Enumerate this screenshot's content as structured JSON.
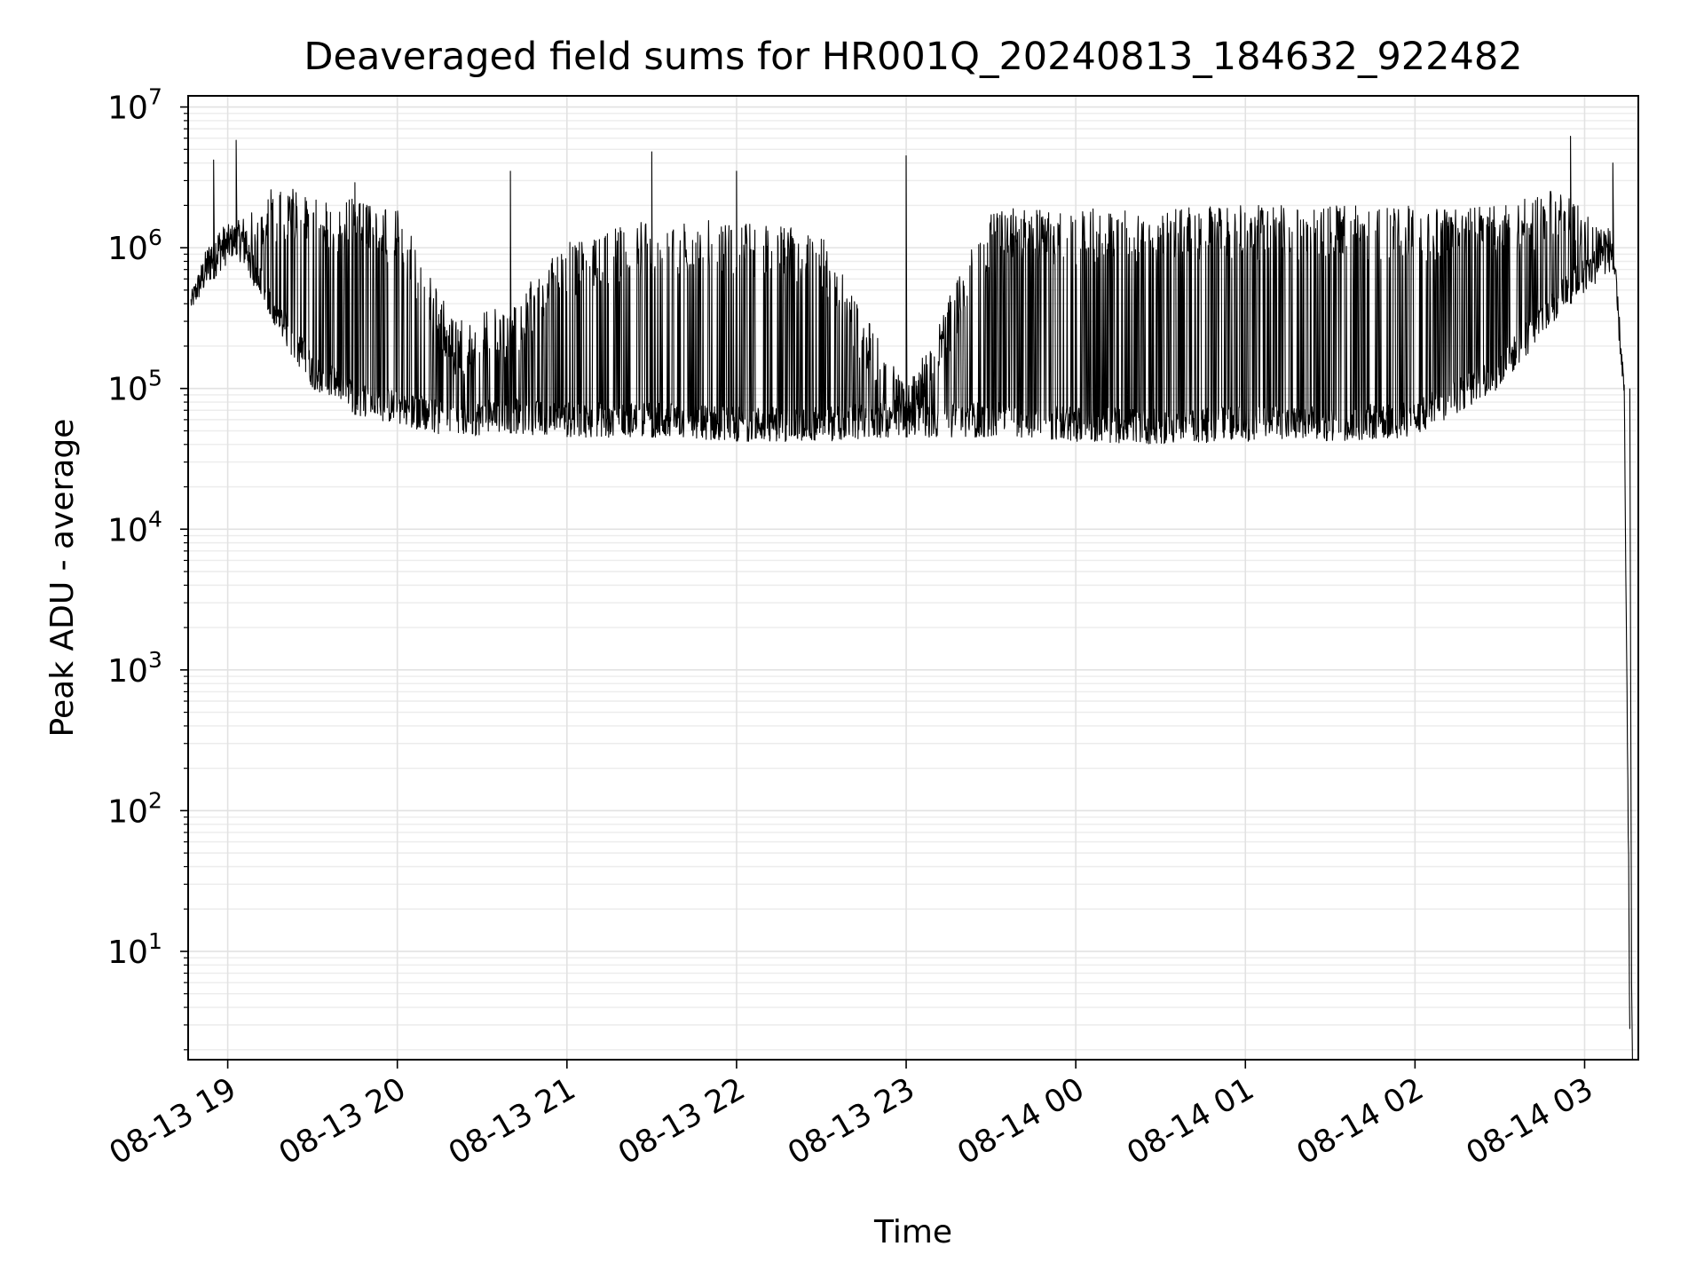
{
  "chart_data": {
    "type": "line",
    "title": "Deaveraged field sums for HR001Q_20240813_184632_922482",
    "xlabel": "Time",
    "ylabel": "Peak ADU - average",
    "yscale": "log",
    "ylim": [
      1.7,
      12000000
    ],
    "xlim": [
      "2024-08-13 18:46",
      "2024-08-14 03:19"
    ],
    "grid": true,
    "line_color": "#000000",
    "x_ticks": [
      "08-13 19",
      "08-13 20",
      "08-13 21",
      "08-13 22",
      "08-13 23",
      "08-14 00",
      "08-14 01",
      "08-14 02",
      "08-14 03"
    ],
    "y_ticks": [
      {
        "base": "10",
        "exp": "1",
        "value": 10
      },
      {
        "base": "10",
        "exp": "2",
        "value": 100
      },
      {
        "base": "10",
        "exp": "3",
        "value": 1000
      },
      {
        "base": "10",
        "exp": "4",
        "value": 10000
      },
      {
        "base": "10",
        "exp": "5",
        "value": 100000
      },
      {
        "base": "10",
        "exp": "6",
        "value": 1000000
      },
      {
        "base": "10",
        "exp": "7",
        "value": 10000000
      }
    ],
    "series": [
      {
        "values_note": "",
        "envelope": [
          {
            "x": "2024-08-13 18:47",
            "low": 350000,
            "high": 480000
          },
          {
            "x": "2024-08-13 18:55",
            "low": 600000,
            "high": 1400000,
            "spike": 4200000
          },
          {
            "x": "2024-08-13 19:03",
            "low": 900000,
            "high": 1500000,
            "spike": 5800000
          },
          {
            "x": "2024-08-13 19:15",
            "low": 300000,
            "high": 2800000
          },
          {
            "x": "2024-08-13 19:30",
            "low": 100000,
            "high": 2500000
          },
          {
            "x": "2024-08-13 19:45",
            "low": 65000,
            "high": 2200000,
            "spike": 2900000
          },
          {
            "x": "2024-08-13 20:00",
            "low": 55000,
            "high": 1900000
          },
          {
            "x": "2024-08-13 20:20",
            "low": 45000,
            "high": 300000
          },
          {
            "x": "2024-08-13 20:40",
            "low": 48000,
            "high": 400000,
            "spike": 3500000
          },
          {
            "x": "2024-08-13 21:00",
            "low": 45000,
            "high": 1100000
          },
          {
            "x": "2024-08-13 21:30",
            "low": 45000,
            "high": 1600000,
            "spike": 4800000
          },
          {
            "x": "2024-08-13 22:00",
            "low": 42000,
            "high": 1600000,
            "spike": 3500000
          },
          {
            "x": "2024-08-13 22:30",
            "low": 42000,
            "high": 1300000
          },
          {
            "x": "2024-08-13 23:00",
            "low": 45000,
            "high": 100000,
            "spike": 4500000
          },
          {
            "x": "2024-08-13 23:30",
            "low": 45000,
            "high": 1900000
          },
          {
            "x": "2024-08-14 00:00",
            "low": 42000,
            "high": 1900000
          },
          {
            "x": "2024-08-14 00:30",
            "low": 40000,
            "high": 1900000
          },
          {
            "x": "2024-08-14 01:00",
            "low": 42000,
            "high": 2000000
          },
          {
            "x": "2024-08-14 01:30",
            "low": 42000,
            "high": 2000000
          },
          {
            "x": "2024-08-14 02:00",
            "low": 45000,
            "high": 2000000
          },
          {
            "x": "2024-08-14 02:30",
            "low": 100000,
            "high": 2000000
          },
          {
            "x": "2024-08-14 02:55",
            "low": 400000,
            "high": 2800000,
            "spike": 6200000
          },
          {
            "x": "2024-08-14 03:10",
            "low": 700000,
            "high": 1300000,
            "spike": 4000000
          },
          {
            "x": "2024-08-14 03:14",
            "low": 80000,
            "high": 120000
          },
          {
            "x": "2024-08-14 03:16",
            "low": 2,
            "high": 6
          }
        ]
      }
    ]
  }
}
